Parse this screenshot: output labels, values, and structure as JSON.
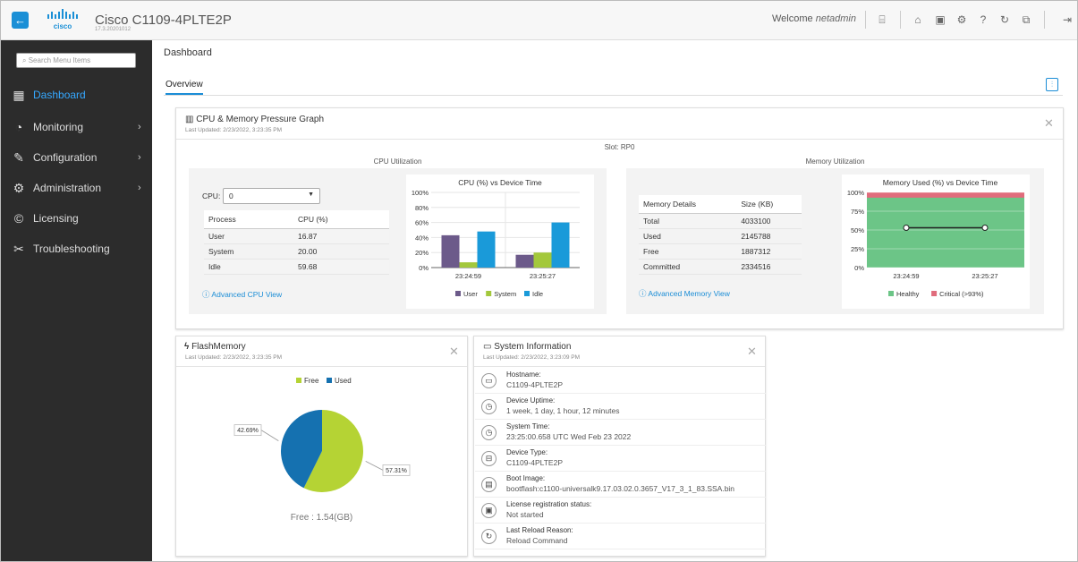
{
  "header": {
    "title": "Cisco C1109-4PLTE2P",
    "version": "17.3.20201012",
    "welcome_prefix": "Welcome",
    "username": "netadmin"
  },
  "sidebar": {
    "search_placeholder": "Search Menu Items",
    "items": [
      {
        "label": "Dashboard",
        "icon": "dashboard-icon",
        "active": true
      },
      {
        "label": "Monitoring",
        "icon": "speedometer-icon",
        "chevron": true
      },
      {
        "label": "Configuration",
        "icon": "wrench-icon",
        "chevron": true
      },
      {
        "label": "Administration",
        "icon": "gear-icon",
        "chevron": true
      },
      {
        "label": "Licensing",
        "icon": "copyright-icon"
      },
      {
        "label": "Troubleshooting",
        "icon": "tools-icon"
      }
    ]
  },
  "page": {
    "breadcrumb": "Dashboard",
    "tab": "Overview"
  },
  "cpu_card": {
    "title": "CPU & Memory Pressure Graph",
    "updated": "Last Updated: 2/23/2022, 3:23:35 PM",
    "slot": "Slot: RP0",
    "cpu_section": "CPU Utilization",
    "mem_section": "Memory Utilization",
    "cpu_label": "CPU:",
    "cpu_select": "0",
    "cpu_table": {
      "headers": [
        "Process",
        "CPU (%)"
      ],
      "rows": [
        [
          "User",
          "16.87"
        ],
        [
          "System",
          "20.00"
        ],
        [
          "Idle",
          "59.68"
        ]
      ]
    },
    "cpu_link": "Advanced CPU View",
    "mem_table": {
      "headers": [
        "Memory Details",
        "Size (KB)"
      ],
      "rows": [
        [
          "Total",
          "4033100"
        ],
        [
          "Used",
          "2145788"
        ],
        [
          "Free",
          "1887312"
        ],
        [
          "Committed",
          "2334516"
        ]
      ]
    },
    "mem_link": "Advanced Memory View"
  },
  "flash_card": {
    "title": "FlashMemory",
    "updated": "Last Updated: 2/23/2022, 3:23:35 PM",
    "free_text": "Free : 1.54(GB)"
  },
  "sys_card": {
    "title": "System Information",
    "updated": "Last Updated: 2/23/2022, 3:23:09 PM",
    "rows": [
      {
        "key": "Hostname:",
        "value": "C1109-4PLTE2P",
        "icon": "monitor-icon",
        "glyph": "▭"
      },
      {
        "key": "Device Uptime:",
        "value": "1 week, 1 day, 1 hour, 12 minutes",
        "icon": "clock-icon",
        "glyph": "◷"
      },
      {
        "key": "System Time:",
        "value": "23:25:00.658 UTC Wed Feb 23 2022",
        "icon": "clock-icon",
        "glyph": "◷"
      },
      {
        "key": "Device Type:",
        "value": "C1109-4PLTE2P",
        "icon": "harddrive-icon",
        "glyph": "⊟"
      },
      {
        "key": "Boot Image:",
        "value": "bootflash:c1100-universalk9.17.03.02.0.3657_V17_3_1_83.SSA.bin",
        "icon": "file-icon",
        "glyph": "▤"
      },
      {
        "key": "License registration status:",
        "value": "Not started",
        "icon": "briefcase-icon",
        "glyph": "▣"
      },
      {
        "key": "Last Reload Reason:",
        "value": "Reload Command",
        "icon": "reload-icon",
        "glyph": "↻"
      }
    ]
  },
  "chart_data": [
    {
      "type": "bar",
      "title": "CPU (%) vs Device Time",
      "categories": [
        "23:24:59",
        "23:25:27"
      ],
      "series": [
        {
          "name": "User",
          "values": [
            43,
            17
          ],
          "color": "#6c5a8a"
        },
        {
          "name": "System",
          "values": [
            7,
            20
          ],
          "color": "#a3c83c"
        },
        {
          "name": "Idle",
          "values": [
            48,
            60
          ],
          "color": "#1a9ad9"
        }
      ],
      "yticks": [
        "0%",
        "20%",
        "40%",
        "60%",
        "80%",
        "100%"
      ],
      "ylim": [
        0,
        100
      ]
    },
    {
      "type": "area",
      "title": "Memory Used (%) vs Device Time",
      "categories": [
        "23:24:59",
        "23:25:27"
      ],
      "series": [
        {
          "name": "Healthy",
          "values": [
            93,
            93
          ],
          "color": "#6cc587"
        },
        {
          "name": "Critical (>93%)",
          "values": [
            7,
            7
          ],
          "color": "#e06c7c"
        }
      ],
      "used_values": [
        53,
        53
      ],
      "yticks": [
        "0%",
        "25%",
        "50%",
        "75%",
        "100%"
      ],
      "ylim": [
        0,
        100
      ]
    },
    {
      "type": "pie",
      "series": [
        {
          "name": "Free",
          "value": 57.31,
          "label": "57.31%",
          "color": "#b5d334"
        },
        {
          "name": "Used",
          "value": 42.69,
          "label": "42.69%",
          "color": "#1571b0"
        }
      ]
    }
  ],
  "colors": {
    "accent": "#1b8dd6",
    "sidebar": "#2c2c2c"
  }
}
